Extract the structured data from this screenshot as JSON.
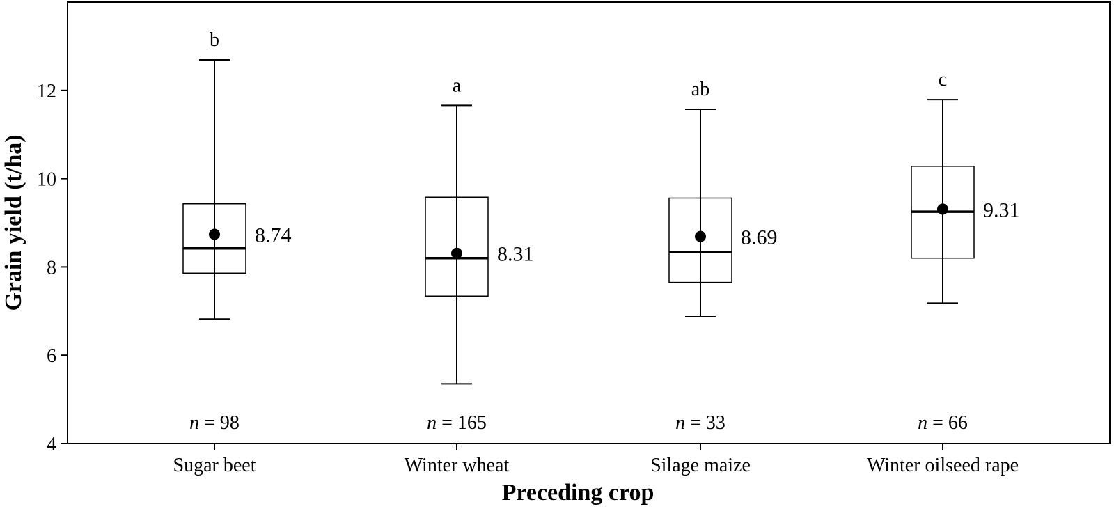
{
  "chart_data": {
    "type": "box",
    "xlabel": "Preceding crop",
    "ylabel": "Grain yield (t/ha)",
    "ylim": [
      4,
      14
    ],
    "yticks": [
      4,
      6,
      8,
      10,
      12
    ],
    "grid": false,
    "categories": [
      "Sugar beet",
      "Winter wheat",
      "Silage maize",
      "Winter oilseed rape"
    ],
    "boxes": [
      {
        "category": "Sugar beet",
        "whisker_low": 6.82,
        "q1": 7.86,
        "median": 8.42,
        "q3": 9.43,
        "whisker_high": 12.69,
        "mean": 8.74,
        "mean_label": "8.74",
        "letter": "b",
        "n_prefix": "n",
        "n_text": " = 98"
      },
      {
        "category": "Winter wheat",
        "whisker_low": 5.35,
        "q1": 7.34,
        "median": 8.2,
        "q3": 9.58,
        "whisker_high": 11.66,
        "mean": 8.31,
        "mean_label": "8.31",
        "letter": "a",
        "n_prefix": "n",
        "n_text": " = 165"
      },
      {
        "category": "Silage maize",
        "whisker_low": 6.87,
        "q1": 7.65,
        "median": 8.34,
        "q3": 9.56,
        "whisker_high": 11.57,
        "mean": 8.69,
        "mean_label": "8.69",
        "letter": "ab",
        "n_prefix": "n",
        "n_text": " = 33"
      },
      {
        "category": "Winter oilseed rape",
        "whisker_low": 7.18,
        "q1": 8.2,
        "median": 9.25,
        "q3": 10.28,
        "whisker_high": 11.79,
        "mean": 9.31,
        "mean_label": "9.31",
        "letter": "c",
        "n_prefix": "n",
        "n_text": " = 66"
      }
    ]
  }
}
